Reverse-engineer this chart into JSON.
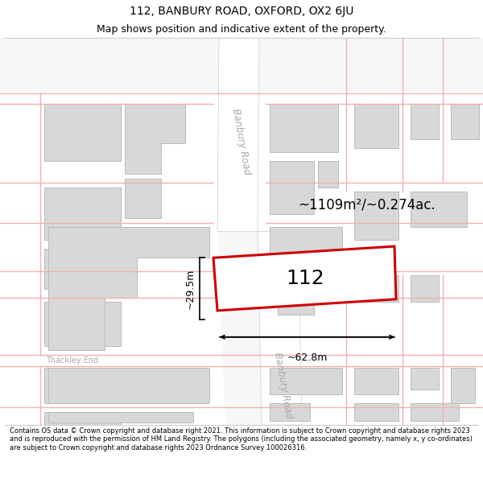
{
  "title_line1": "112, BANBURY ROAD, OXFORD, OX2 6JU",
  "title_line2": "Map shows position and indicative extent of the property.",
  "footer_text": "Contains OS data © Crown copyright and database right 2021. This information is subject to Crown copyright and database rights 2023 and is reproduced with the permission of HM Land Registry. The polygons (including the associated geometry, namely x, y co-ordinates) are subject to Crown copyright and database rights 2023 Ordnance Survey 100026316.",
  "map_bg": "#f7f7f7",
  "fig_bg": "#ffffff",
  "property_color": "#cc0000",
  "property_label": "112",
  "area_text": "~1109m²/~0.274ac.",
  "width_label": "~62.8m",
  "height_label": "~29.5m",
  "road_label_upper": "Banbury Road",
  "road_label_lower": "Banbury Road",
  "thackley_label": "Thackley End",
  "title_fontsize": 10,
  "subtitle_fontsize": 9,
  "footer_fontsize": 6.0
}
